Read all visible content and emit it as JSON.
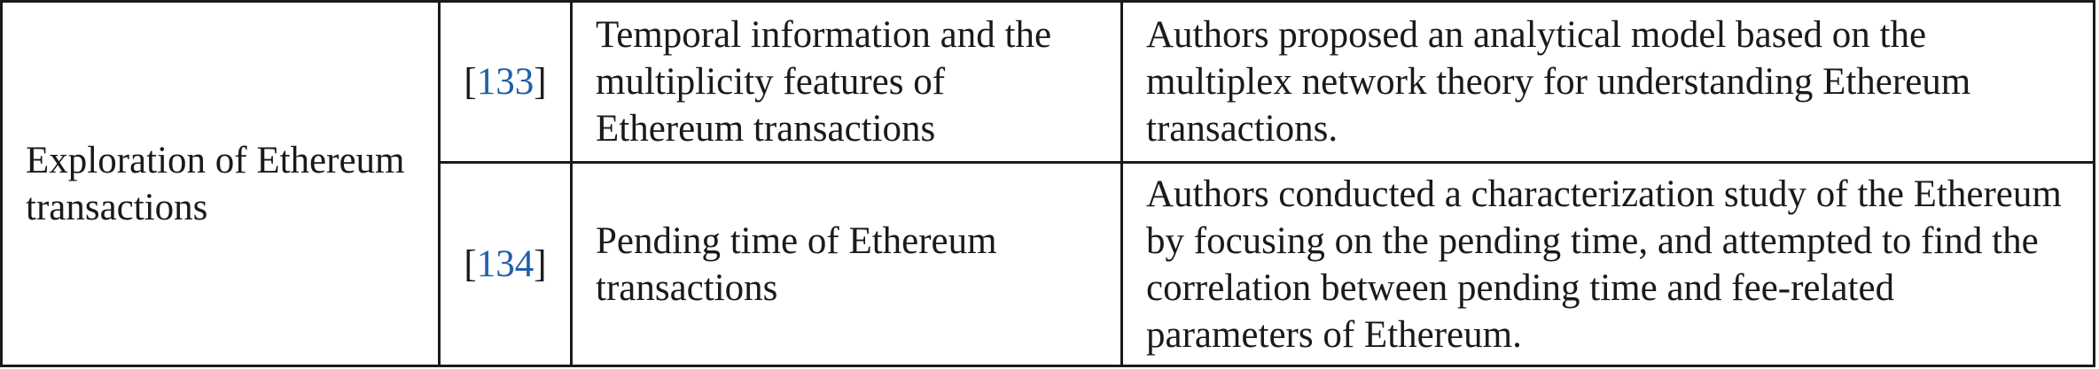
{
  "table": {
    "category": "Exploration of Ethereum transactions",
    "rows": [
      {
        "ref": "133",
        "topic": "Temporal information and the multiplicity features of Ethereum transactions",
        "description": "Authors proposed an analytical model based on the multiplex network theory for understanding Ethereum transactions."
      },
      {
        "ref": "134",
        "topic": "Pending time of Ethereum transactions",
        "description": "Authors conducted a characterization study of the Ethereum by focusing on the pending time, and attempted to find the correlation between pending time and fee-related parameters of Ethereum."
      }
    ],
    "bracket_open": "[",
    "bracket_close": "]"
  },
  "colors": {
    "text": "#1a1a1a",
    "link": "#1f5fa8",
    "border": "#1a1a1a"
  }
}
